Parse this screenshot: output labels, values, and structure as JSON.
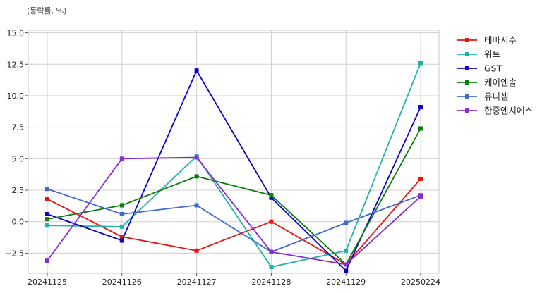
{
  "chart_data": {
    "type": "line",
    "unit_label": "(등락률, %)",
    "categories": [
      "20241125",
      "20241126",
      "20241127",
      "20241128",
      "20241129",
      "20250224"
    ],
    "ylim": [
      -4.1,
      15.2
    ],
    "yticks": [
      -2.5,
      0.0,
      2.5,
      5.0,
      7.5,
      10.0,
      12.5,
      15.0
    ],
    "ytick_labels": [
      "−2.5",
      "0.0",
      "2.5",
      "5.0",
      "7.5",
      "10.0",
      "12.5",
      "15.0"
    ],
    "grid": true,
    "legend_position": "right, outside plot",
    "series": [
      {
        "name": "테마지수",
        "color": "#e8130f",
        "values": [
          1.8,
          -1.2,
          -2.3,
          0.0,
          -3.4,
          3.4
        ]
      },
      {
        "name": "워트",
        "color": "#20b2aa",
        "values": [
          -0.3,
          -0.4,
          5.2,
          -3.6,
          -2.3,
          12.6
        ]
      },
      {
        "name": "GST",
        "color": "#0b00c8",
        "values": [
          0.6,
          -1.5,
          12.0,
          1.9,
          -3.9,
          9.1
        ]
      },
      {
        "name": "케이엔솔",
        "color": "#0a7d0a",
        "values": [
          0.2,
          1.3,
          3.6,
          2.1,
          -3.4,
          7.4
        ]
      },
      {
        "name": "유니셈",
        "color": "#4169cf",
        "values": [
          2.6,
          0.6,
          1.3,
          -2.4,
          -0.1,
          2.1
        ]
      },
      {
        "name": "한중엔시에스",
        "color": "#8a2bd2",
        "values": [
          -3.1,
          5.0,
          5.1,
          -2.4,
          -3.4,
          2.0
        ]
      }
    ]
  }
}
